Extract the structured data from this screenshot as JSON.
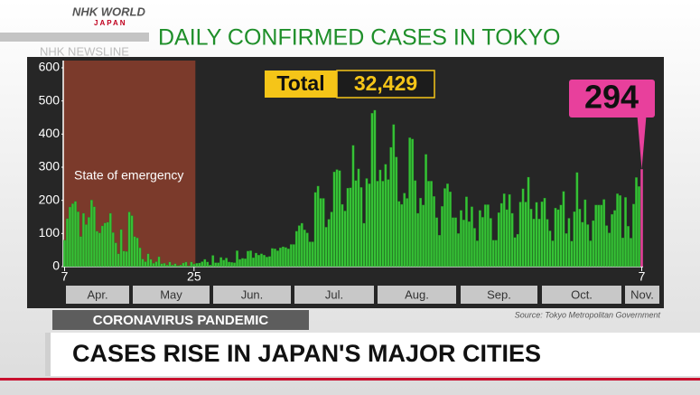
{
  "logo": {
    "brand": "NHK WORLD",
    "sub": "JAPAN",
    "program": "NHK NEWSLINE"
  },
  "chart_data": {
    "type": "bar",
    "title": "DAILY CONFIRMED CASES IN TOKYO",
    "color": "#36c236",
    "highlight_color": "#e8409c",
    "grid": false,
    "ylim": [
      0,
      600
    ],
    "yticks": [
      0,
      100,
      200,
      300,
      400,
      500,
      600
    ],
    "months": [
      "Apr.",
      "May",
      "Jun.",
      "Jul.",
      "Aug.",
      "Sep.",
      "Oct.",
      "Nov."
    ],
    "shaded_label": "State of emergency",
    "total_label": "Total",
    "total_value": "32,429",
    "latest": 294,
    "source": "Source: Tokyo Metropolitan Government",
    "categories": [
      "7",
      null,
      null,
      null,
      null,
      null,
      null,
      null,
      null,
      null,
      null,
      null,
      null,
      null,
      null,
      null,
      null,
      null,
      null,
      null,
      null,
      null,
      null,
      null,
      null,
      null,
      null,
      null,
      null,
      null,
      null,
      null,
      null,
      null,
      null,
      null,
      null,
      null,
      null,
      null,
      null,
      null,
      null,
      null,
      null,
      null,
      null,
      null,
      "25",
      null,
      null,
      null,
      null,
      null,
      null,
      null,
      null,
      null,
      null,
      null,
      null,
      null,
      null,
      null,
      null,
      null,
      null,
      null,
      null,
      null,
      null,
      null,
      null,
      null,
      null,
      null,
      null,
      null,
      null,
      null,
      null,
      null,
      null,
      null,
      null,
      null,
      null,
      null,
      null,
      null,
      null,
      null,
      null,
      null,
      null,
      null,
      null,
      null,
      null,
      null,
      null,
      null,
      null,
      null,
      null,
      null,
      null,
      null,
      null,
      null,
      null,
      null,
      null,
      null,
      null,
      null,
      null,
      null,
      null,
      null,
      null,
      null,
      null,
      null,
      null,
      null,
      null,
      null,
      null,
      null,
      null,
      null,
      null,
      null,
      null,
      null,
      null,
      null,
      null,
      null,
      null,
      null,
      null,
      null,
      null,
      null,
      null,
      null,
      null,
      null,
      null,
      null,
      null,
      null,
      null,
      null,
      null,
      null,
      null,
      null,
      null,
      null,
      null,
      null,
      null,
      null,
      null,
      null,
      null,
      null,
      null,
      null,
      null,
      null,
      null,
      null,
      null,
      null,
      null,
      null,
      null,
      null,
      null,
      null,
      null,
      null,
      null,
      null,
      null,
      null,
      null,
      null,
      null,
      null,
      null,
      null,
      null,
      null,
      null,
      null,
      null,
      null,
      null,
      null,
      null,
      null,
      null,
      null,
      null,
      null,
      null,
      null,
      null,
      null,
      "7"
    ],
    "values": [
      80,
      145,
      180,
      190,
      197,
      166,
      91,
      161,
      127,
      149,
      201,
      181,
      107,
      102,
      123,
      132,
      134,
      161,
      103,
      72,
      39,
      112,
      47,
      46,
      165,
      154,
      91,
      87,
      57,
      23,
      15,
      39,
      22,
      10,
      15,
      30,
      9,
      10,
      5,
      14,
      5,
      9,
      3,
      5,
      11,
      14,
      2,
      14,
      8,
      10,
      11,
      15,
      22,
      14,
      5,
      34,
      12,
      12,
      28,
      20,
      26,
      14,
      13,
      12,
      48,
      22,
      25,
      24,
      47,
      48,
      27,
      41,
      35,
      39,
      35,
      29,
      31,
      55,
      54,
      48,
      57,
      60,
      58,
      54,
      67,
      67,
      107,
      124,
      131,
      111,
      102,
      75,
      75,
      224,
      243,
      206,
      206,
      119,
      143,
      165,
      286,
      293,
      290,
      188,
      168,
      237,
      238,
      366,
      260,
      295,
      239,
      131,
      266,
      250,
      463,
      472,
      258,
      292,
      258,
      309,
      263,
      360,
      429,
      331,
      197,
      188,
      222,
      206,
      389,
      385,
      260,
      161,
      207,
      186,
      339,
      258,
      258,
      212,
      148,
      95,
      182,
      236,
      250,
      226,
      148,
      148,
      100,
      170,
      141,
      211,
      136,
      181,
      116,
      78,
      170,
      149,
      187,
      187,
      146,
      80,
      80,
      163,
      191,
      220,
      172,
      218,
      161,
      88,
      98,
      195,
      235,
      195,
      270,
      174,
      144,
      194,
      144,
      196,
      207,
      143,
      108,
      78,
      177,
      172,
      186,
      227,
      100,
      146,
      77,
      166,
      284,
      174,
      134,
      202,
      127,
      78,
      139,
      186,
      186,
      186,
      203,
      124,
      102,
      158,
      170,
      220,
      215,
      87,
      209,
      122,
      86,
      189,
      269,
      242,
      294
    ]
  },
  "lower_third": {
    "tag": "CORONAVIRUS PANDEMIC",
    "headline": "CASES RISE IN JAPAN'S MAJOR CITIES"
  }
}
